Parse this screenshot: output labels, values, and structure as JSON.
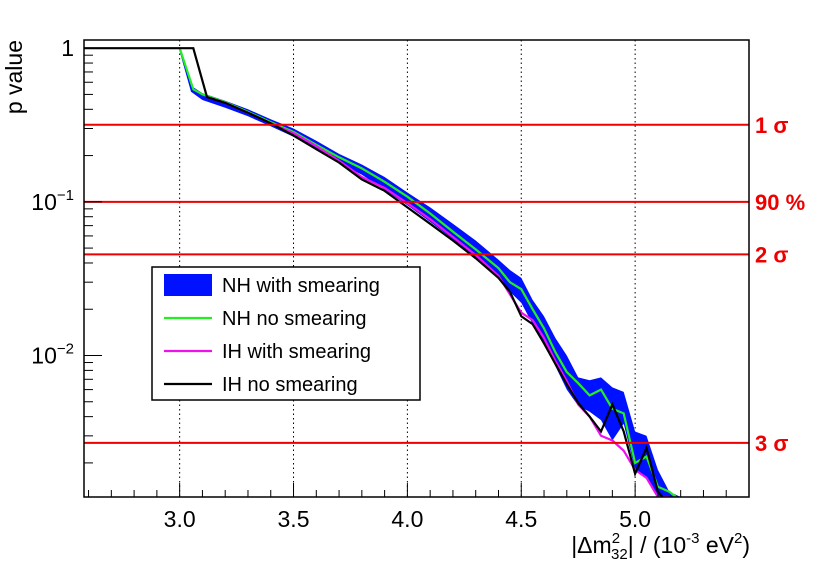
{
  "chart_data": {
    "type": "line",
    "title": "",
    "xlabel": "|Δm²₃₂| / (10⁻³ eV²)",
    "xlabel_parts": {
      "prefix": "|Δm",
      "sup": "2",
      "sub": "32",
      "mid": "| / (10",
      "sup2": "-3",
      "unit": " eV",
      "sup3": "2",
      "suffix": ")"
    },
    "ylabel": "p value",
    "xlim": [
      2.58,
      5.5
    ],
    "ylim": [
      0.0012,
      1.13
    ],
    "yscale": "log",
    "x_ticks": [
      3.0,
      3.5,
      4.0,
      4.5,
      5.0
    ],
    "x_tick_labels": [
      "3.0",
      "3.5",
      "4.0",
      "4.5",
      "5.0"
    ],
    "y_tick_labels": [
      {
        "value": 1,
        "base": "1",
        "exp": ""
      },
      {
        "value": 0.1,
        "base": "10",
        "exp": "−1"
      },
      {
        "value": 0.01,
        "base": "10",
        "exp": "−2"
      }
    ],
    "grid": "vertical dotted",
    "reference_lines": [
      {
        "label": "1 σ",
        "value": 0.3173
      },
      {
        "label": "90 %",
        "value": 0.1
      },
      {
        "label": "2 σ",
        "value": 0.0455
      },
      {
        "label": "3 σ",
        "value": 0.0027
      }
    ],
    "legend": {
      "placement": "left-center",
      "entries": [
        {
          "name": "NH with smearing",
          "style": "band"
        },
        {
          "name": "NH no smearing",
          "style": "line"
        },
        {
          "name": "IH with smearing",
          "style": "line"
        },
        {
          "name": "IH no smearing",
          "style": "line"
        }
      ]
    },
    "series": [
      {
        "name": "NH with smearing",
        "kind": "band",
        "x": [
          3.0,
          3.05,
          3.1,
          3.2,
          3.3,
          3.4,
          3.5,
          3.6,
          3.7,
          3.8,
          3.9,
          4.0,
          4.1,
          4.2,
          4.3,
          4.4,
          4.45,
          4.5,
          4.55,
          4.6,
          4.65,
          4.7,
          4.75,
          4.8,
          4.85,
          4.9,
          4.95,
          5.0,
          5.05,
          5.1,
          5.15,
          5.2
        ],
        "low": [
          0.95,
          0.52,
          0.46,
          0.41,
          0.36,
          0.31,
          0.265,
          0.22,
          0.18,
          0.15,
          0.12,
          0.095,
          0.074,
          0.057,
          0.043,
          0.032,
          0.026,
          0.022,
          0.016,
          0.012,
          0.0085,
          0.006,
          0.0047,
          0.0043,
          0.0038,
          0.0028,
          0.0036,
          0.0018,
          0.0016,
          0.0012,
          0.0012,
          0.0012
        ],
        "high": [
          1.0,
          0.57,
          0.51,
          0.455,
          0.4,
          0.345,
          0.3,
          0.25,
          0.205,
          0.175,
          0.145,
          0.115,
          0.092,
          0.072,
          0.056,
          0.042,
          0.036,
          0.032,
          0.023,
          0.018,
          0.013,
          0.01,
          0.0072,
          0.0069,
          0.0072,
          0.0062,
          0.0058,
          0.0032,
          0.003,
          0.0018,
          0.0013,
          0.0012
        ]
      },
      {
        "name": "NH no smearing",
        "color": "#22ee22",
        "x": [
          3.0,
          3.06,
          3.1,
          3.2,
          3.3,
          3.4,
          3.5,
          3.6,
          3.7,
          3.8,
          3.9,
          4.0,
          4.1,
          4.2,
          4.3,
          4.4,
          4.45,
          4.5,
          4.55,
          4.6,
          4.65,
          4.7,
          4.75,
          4.8,
          4.85,
          4.9,
          4.95,
          5.0,
          5.05,
          5.1,
          5.15,
          5.18
        ],
        "y": [
          1.0,
          0.54,
          0.5,
          0.445,
          0.385,
          0.33,
          0.285,
          0.235,
          0.195,
          0.165,
          0.135,
          0.108,
          0.084,
          0.064,
          0.049,
          0.037,
          0.03,
          0.027,
          0.02,
          0.015,
          0.0105,
          0.0078,
          0.0066,
          0.0055,
          0.006,
          0.0045,
          0.0042,
          0.002,
          0.0022,
          0.0014,
          0.0013,
          0.0012
        ]
      },
      {
        "name": "IH with smearing",
        "color": "#ee11ee",
        "x": [
          3.12,
          3.2,
          3.3,
          3.4,
          3.5,
          3.6,
          3.7,
          3.8,
          3.9,
          4.0,
          4.1,
          4.2,
          4.3,
          4.4,
          4.45,
          4.5,
          4.55,
          4.6,
          4.65,
          4.7,
          4.75,
          4.8,
          4.85,
          4.9,
          4.95,
          5.0,
          5.05,
          5.1,
          5.15
        ],
        "y": [
          0.48,
          0.44,
          0.38,
          0.325,
          0.28,
          0.23,
          0.185,
          0.145,
          0.123,
          0.098,
          0.077,
          0.059,
          0.045,
          0.033,
          0.025,
          0.019,
          0.017,
          0.013,
          0.0092,
          0.0068,
          0.0048,
          0.004,
          0.003,
          0.0028,
          0.0024,
          0.0018,
          0.0016,
          0.0012,
          0.0012
        ]
      },
      {
        "name": "IH no smearing",
        "color": "#000000",
        "x": [
          2.58,
          3.06,
          3.12,
          3.2,
          3.3,
          3.4,
          3.5,
          3.6,
          3.7,
          3.8,
          3.9,
          4.0,
          4.1,
          4.2,
          4.3,
          4.4,
          4.45,
          4.5,
          4.55,
          4.6,
          4.65,
          4.7,
          4.75,
          4.8,
          4.85,
          4.9,
          4.95,
          5.0,
          5.05,
          5.1,
          5.12
        ],
        "y": [
          1.0,
          1.0,
          0.48,
          0.44,
          0.38,
          0.325,
          0.27,
          0.22,
          0.18,
          0.14,
          0.118,
          0.092,
          0.072,
          0.056,
          0.043,
          0.032,
          0.026,
          0.018,
          0.016,
          0.012,
          0.0088,
          0.0065,
          0.0049,
          0.004,
          0.0032,
          0.0048,
          0.0032,
          0.0017,
          0.0025,
          0.0013,
          0.0012
        ]
      }
    ],
    "colors": {
      "band": "#0011ff",
      "reference": "#ee0000",
      "frame": "#000000"
    }
  }
}
